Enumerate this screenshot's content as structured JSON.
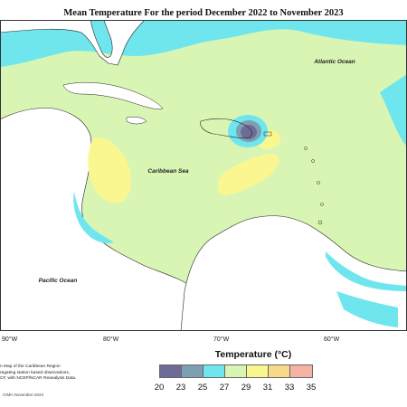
{
  "title": "Mean Temperature For the period December 2022 to November 2023",
  "labels": {
    "atlantic": "Atlantic Ocean",
    "caribbean": "Caribbean Sea",
    "pacific": "Pacific Ocean"
  },
  "longitudes": [
    "90°W",
    "80°W",
    "70°W",
    "60°W"
  ],
  "legend": {
    "title": "Temperature (°C)",
    "ticks": [
      "20",
      "23",
      "25",
      "27",
      "29",
      "31",
      "33",
      "35"
    ],
    "colors": [
      "#6e6b97",
      "#7e9eb1",
      "#6fe6ee",
      "#d8f5b4",
      "#fbf790",
      "#f7d98a",
      "#f5b3a3"
    ]
  },
  "note": {
    "lines": [
      "n Map of the Caribbean Region",
      "regating station based observations,",
      "CF, with NCEP/NCAR Reanalysis Data."
    ],
    "credit": "CIMH November-2023"
  }
}
